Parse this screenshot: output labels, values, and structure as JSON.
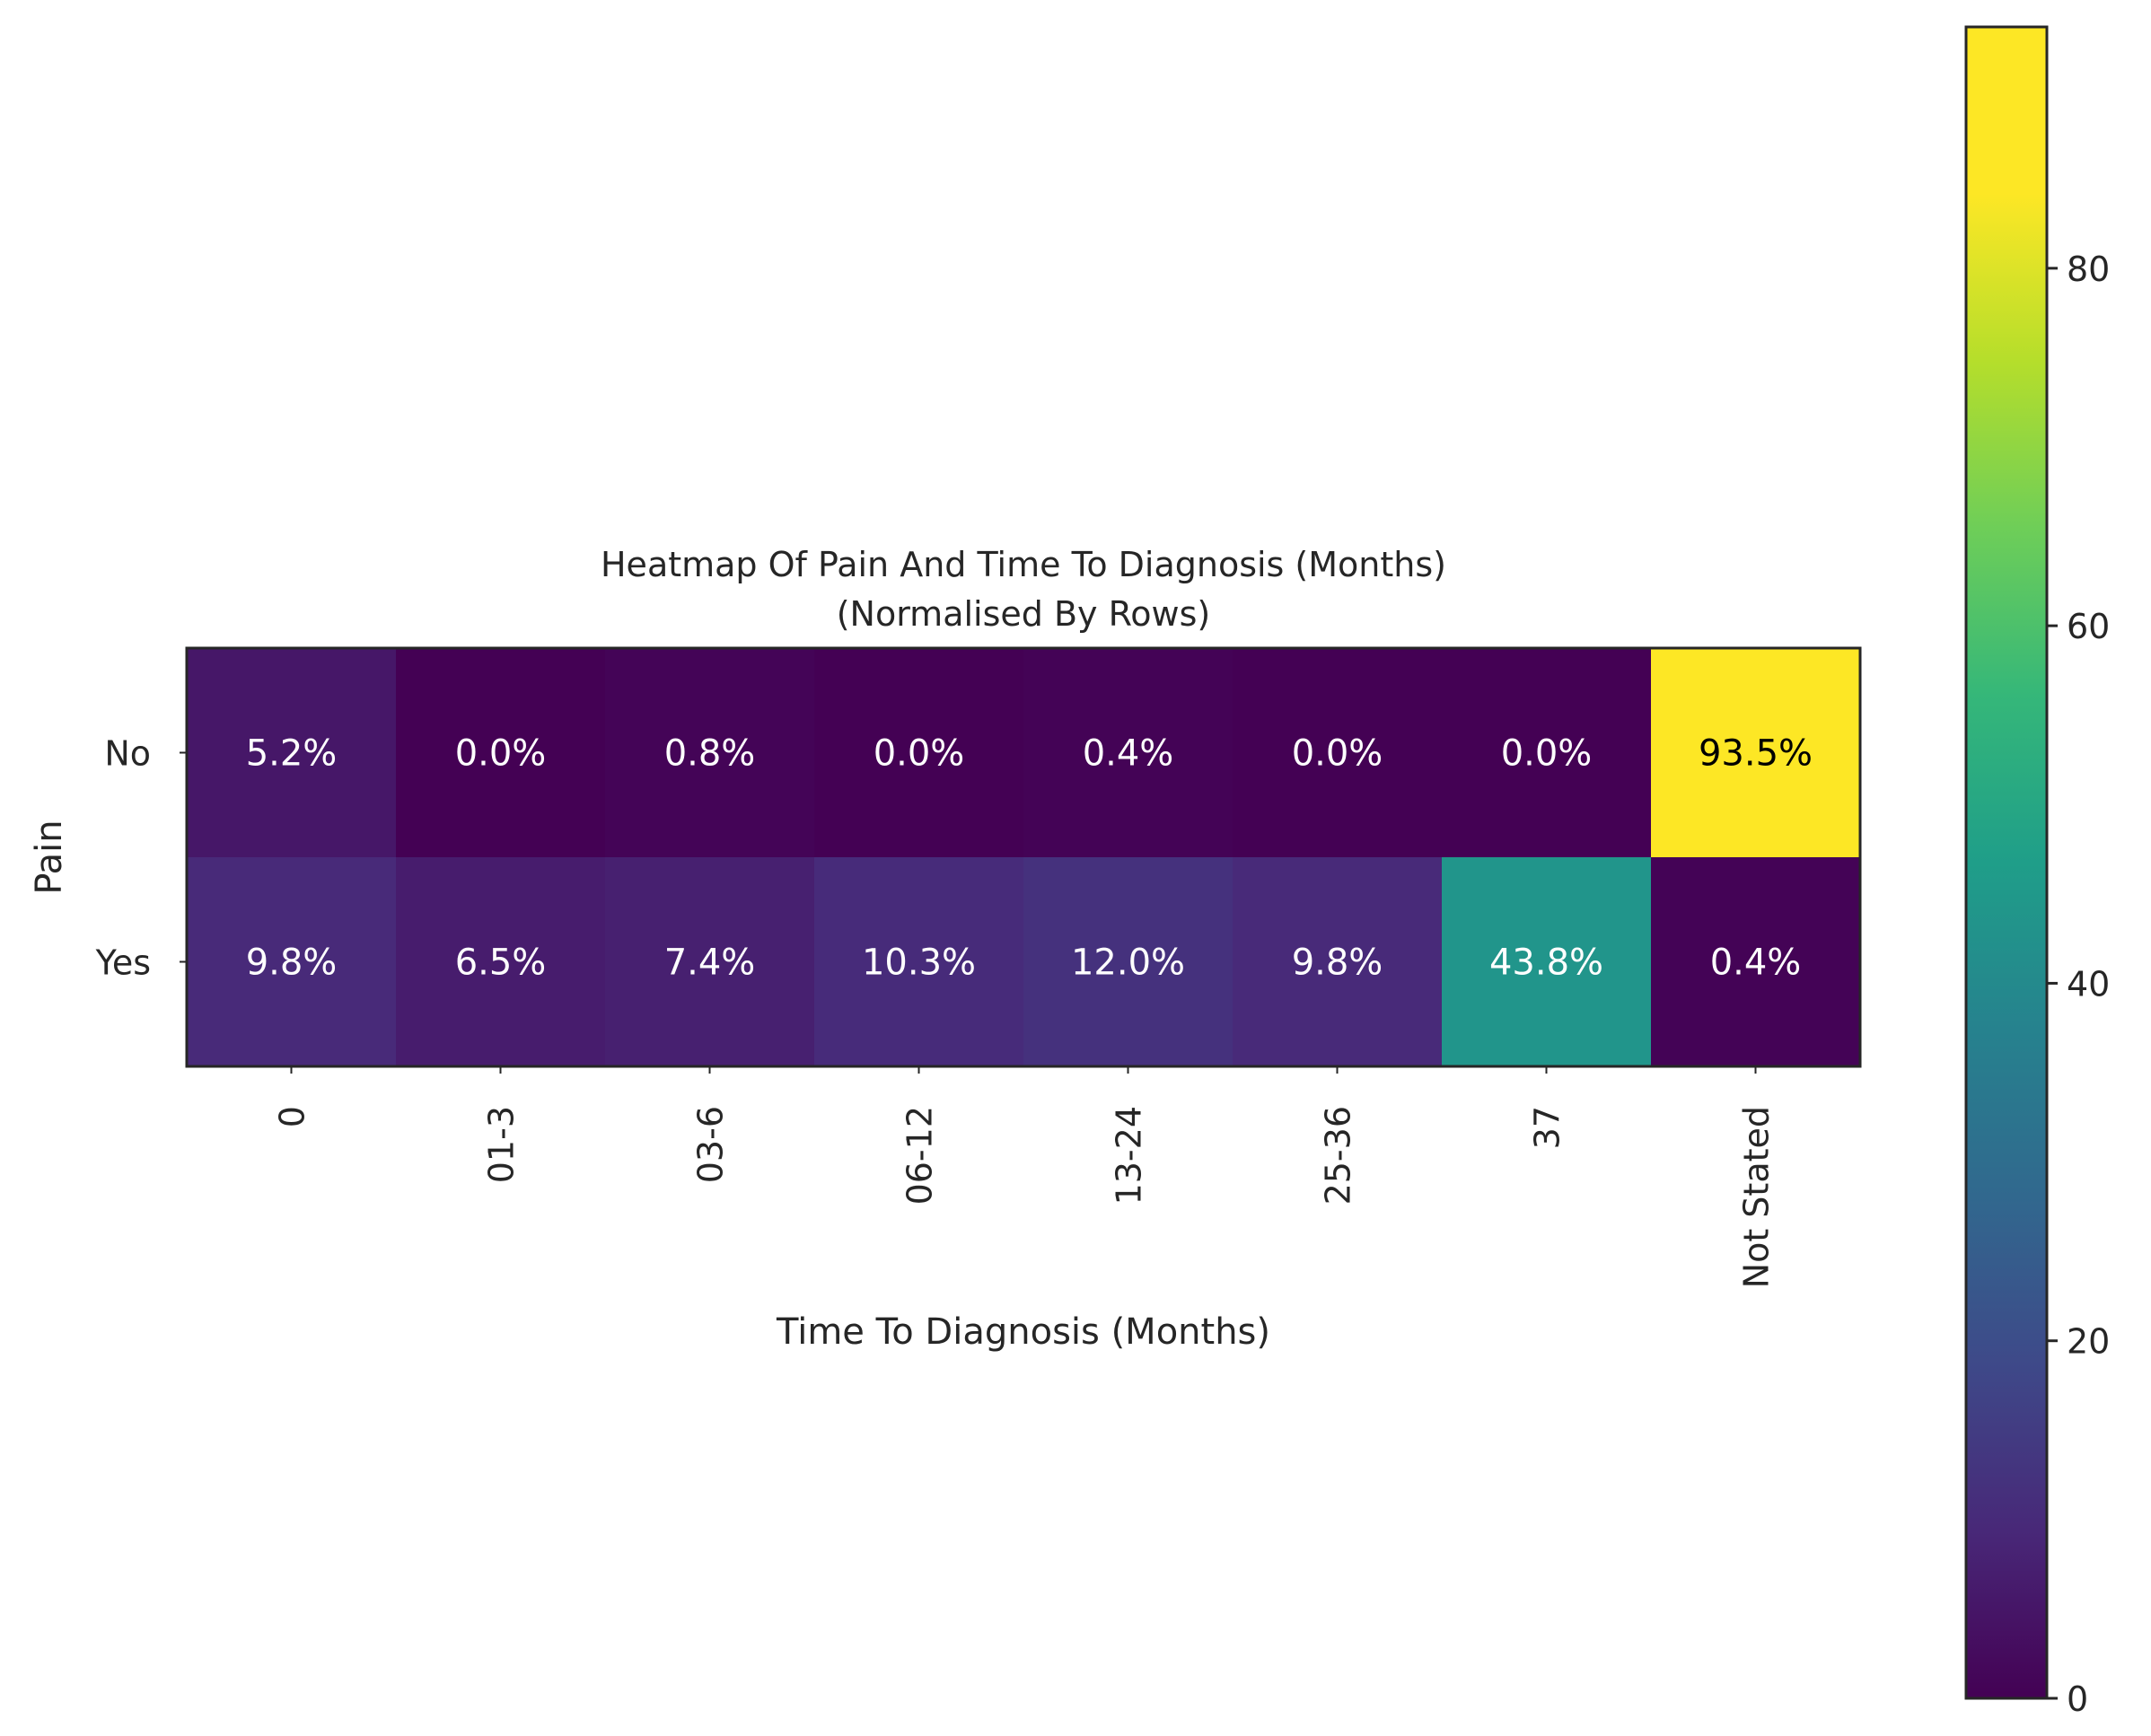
{
  "chart_data": {
    "type": "heatmap",
    "title": "Heatmap Of Pain And Time To Diagnosis (Months)",
    "subtitle": "(Normalised By Rows)",
    "xlabel": "Time To Diagnosis (Months)",
    "ylabel": "Pain",
    "x_categories": [
      "0",
      "01-3",
      "03-6",
      "06-12",
      "13-24",
      "25-36",
      "37",
      "Not Stated"
    ],
    "y_categories": [
      "No",
      "Yes"
    ],
    "values": [
      [
        5.2,
        0.0,
        0.8,
        0.0,
        0.4,
        0.0,
        0.0,
        93.5
      ],
      [
        9.8,
        6.5,
        7.4,
        10.3,
        12.0,
        9.8,
        43.8,
        0.4
      ]
    ],
    "cell_labels": [
      [
        "5.2%",
        "0.0%",
        "0.8%",
        "0.0%",
        "0.4%",
        "0.0%",
        "0.0%",
        "93.5%"
      ],
      [
        "9.8%",
        "6.5%",
        "7.4%",
        "10.3%",
        "12.0%",
        "9.8%",
        "43.8%",
        "0.4%"
      ]
    ],
    "colormap": "viridis",
    "colorbar": {
      "range": [
        0,
        93.5
      ],
      "ticks": [
        0,
        20,
        40,
        60,
        80
      ],
      "tick_labels": [
        "0",
        "20",
        "40",
        "60",
        "80"
      ]
    },
    "grid": false,
    "legend": "colorbar-right"
  }
}
